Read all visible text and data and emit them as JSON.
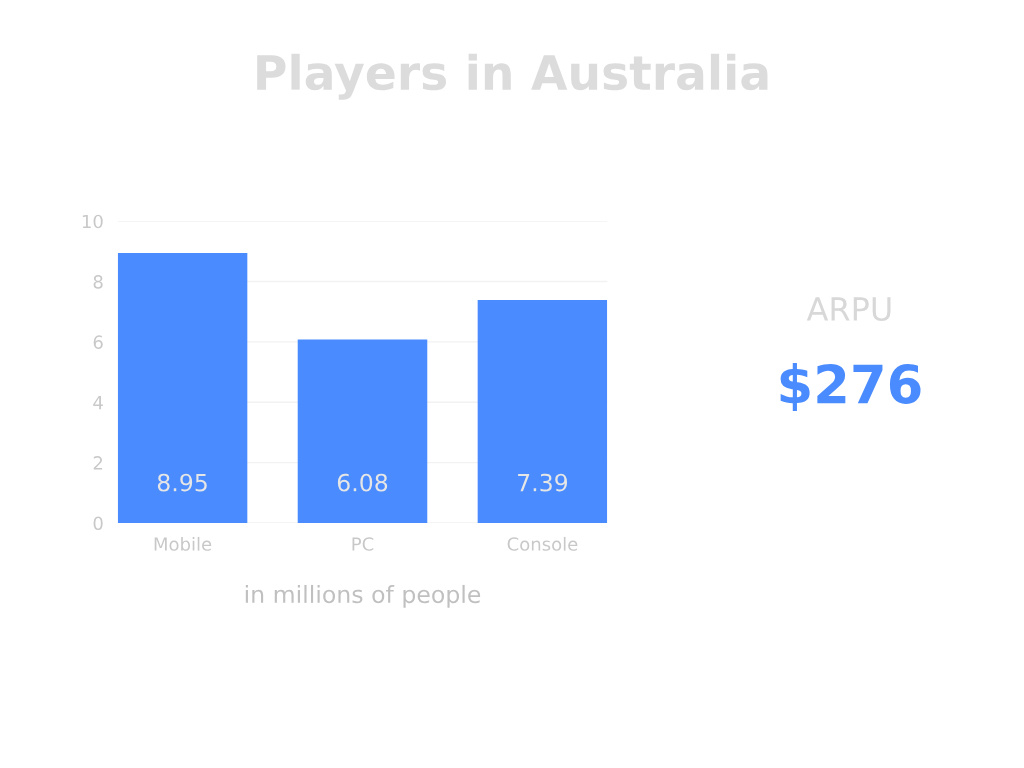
{
  "chart_data": [
    {
      "type": "bar",
      "title": "Players in Australia",
      "xlabel": "in millions of people",
      "categories": [
        "Mobile",
        "PC",
        "Console"
      ],
      "values": [
        8.95,
        6.08,
        7.39
      ],
      "color": "#4a8cff",
      "ylim": [
        0,
        10
      ],
      "yticks": [
        0,
        2,
        4,
        6,
        8,
        10
      ],
      "grid": "y",
      "data_labels": true,
      "legend": false
    },
    {
      "type": "other",
      "title": "ARPU",
      "annotations": [
        "$276"
      ]
    }
  ]
}
